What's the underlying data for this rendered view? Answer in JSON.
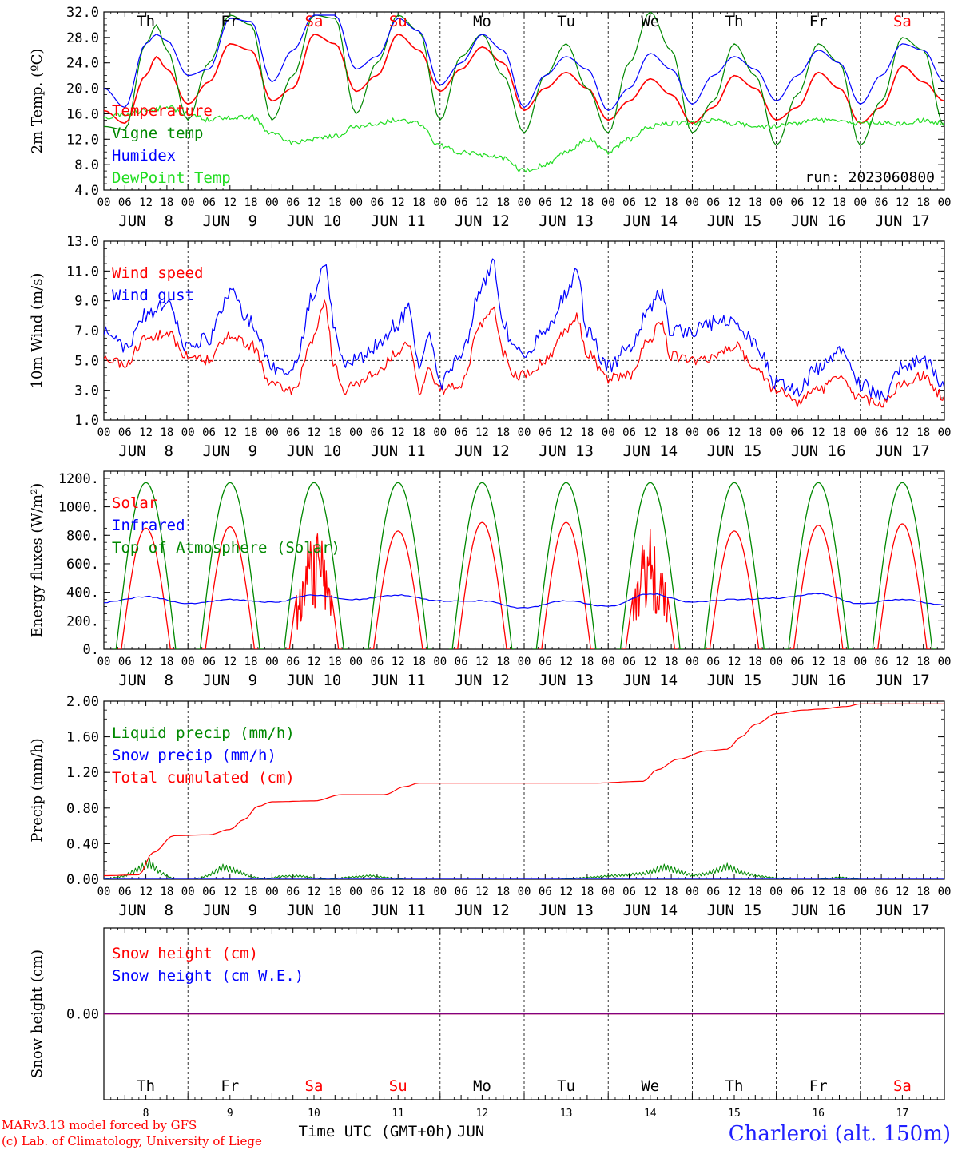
{
  "station_title": "Charleroi (alt. 150m)",
  "footer": {
    "credit_line1": "MARv3.13 model forced by GFS",
    "credit_line2": "(c) Lab. of Climatology, University of Liege",
    "x_axis_title": "Time UTC (GMT+0h)",
    "month": "JUN"
  },
  "days": {
    "weekdays": [
      "Th",
      "Fr",
      "Sa",
      "Su",
      "Mo",
      "Tu",
      "We",
      "Th",
      "Fr",
      "Sa"
    ],
    "weekend_flags": [
      false,
      false,
      true,
      true,
      false,
      false,
      false,
      false,
      false,
      true
    ],
    "dates": [
      "JUN  8",
      "JUN  9",
      "JUN 10",
      "JUN 11",
      "JUN 12",
      "JUN 13",
      "JUN 14",
      "JUN 15",
      "JUN 16",
      "JUN 17"
    ],
    "day_numbers": [
      "8",
      "9",
      "10",
      "11",
      "12",
      "13",
      "14",
      "15",
      "16",
      "17"
    ],
    "hour_ticks": [
      "00",
      "06",
      "12",
      "18"
    ],
    "final_tick": "00"
  },
  "colors": {
    "red": "#ff0000",
    "dark_green": "#008800",
    "blue": "#0000ff",
    "light_green": "#22dd22",
    "purple": "#800080",
    "station_blue": "#2020ff"
  },
  "chart_data": [
    {
      "type": "line",
      "id": "temp",
      "ylabel": "2m Temp. (ºC)",
      "ylim": [
        4,
        32
      ],
      "yticks": [
        "4.0",
        "8.0",
        "12.0",
        "16.0",
        "20.0",
        "24.0",
        "28.0",
        "32.0"
      ],
      "run_label": "run: 2023060800",
      "x_unit": "hours since JUN 8 00 UTC",
      "series": [
        {
          "name": "Temperature",
          "color": "#ff0000",
          "x": [
            0,
            6,
            12,
            15,
            18,
            24,
            30,
            36,
            42,
            48,
            54,
            60,
            66,
            72,
            78,
            84,
            90,
            96,
            102,
            108,
            114,
            120,
            126,
            132,
            138,
            144,
            150,
            156,
            162,
            168,
            174,
            180,
            186,
            192,
            198,
            204,
            210,
            216,
            222,
            228,
            234,
            240
          ],
          "y": [
            16.5,
            14.5,
            22,
            25,
            23,
            17.5,
            21,
            27,
            26,
            18,
            20,
            28.5,
            27,
            19.5,
            22,
            28.5,
            26,
            19.5,
            23,
            26.5,
            24,
            16.5,
            20,
            22.5,
            20,
            15,
            18,
            21.5,
            19,
            14.5,
            17,
            22,
            20,
            15,
            17,
            22.5,
            20,
            14.5,
            17,
            23.5,
            21,
            18
          ]
        },
        {
          "name": "Vigne temp",
          "color": "#008800",
          "x": [
            0,
            6,
            12,
            15,
            18,
            24,
            30,
            36,
            42,
            48,
            54,
            60,
            66,
            72,
            78,
            84,
            90,
            96,
            102,
            108,
            114,
            120,
            126,
            132,
            138,
            144,
            150,
            156,
            162,
            168,
            174,
            180,
            186,
            192,
            198,
            204,
            210,
            216,
            222,
            228,
            234,
            240
          ],
          "y": [
            14,
            13.5,
            27,
            30,
            26,
            15,
            24,
            31.5,
            30,
            15,
            22,
            31.5,
            31,
            16,
            24,
            31.5,
            29,
            15,
            25,
            28.5,
            22,
            13,
            22,
            27,
            20,
            13,
            24,
            32,
            26,
            13,
            18,
            27,
            22,
            11,
            19,
            27,
            24,
            11,
            18,
            28,
            26,
            14
          ]
        },
        {
          "name": "Humidex",
          "color": "#0000ff",
          "x": [
            0,
            6,
            12,
            15,
            18,
            24,
            30,
            36,
            42,
            48,
            54,
            60,
            66,
            72,
            78,
            84,
            90,
            96,
            102,
            108,
            114,
            120,
            126,
            132,
            138,
            144,
            150,
            156,
            162,
            168,
            174,
            180,
            186,
            192,
            198,
            204,
            210,
            216,
            222,
            228,
            234,
            240
          ],
          "y": [
            20,
            17,
            27,
            28.5,
            27.5,
            22,
            23,
            31,
            30.5,
            21,
            26,
            31.5,
            31.5,
            23,
            25,
            31,
            29,
            20.5,
            24,
            28.5,
            26,
            17,
            22,
            25,
            23,
            16.5,
            20,
            25.5,
            23,
            17.5,
            22,
            25,
            23,
            18,
            22,
            26,
            24,
            17.5,
            22,
            27,
            26,
            21
          ]
        },
        {
          "name": "DewPoint Temp",
          "color": "#22dd22",
          "x": [
            0,
            6,
            12,
            18,
            24,
            30,
            36,
            42,
            48,
            54,
            60,
            66,
            72,
            78,
            84,
            90,
            96,
            102,
            108,
            114,
            120,
            126,
            132,
            138,
            144,
            150,
            156,
            162,
            168,
            174,
            180,
            186,
            192,
            198,
            204,
            210,
            216,
            222,
            228,
            234,
            240
          ],
          "y": [
            15.5,
            16,
            16.5,
            17,
            16,
            15,
            15.5,
            15.5,
            13,
            11.5,
            12,
            12.5,
            14,
            14.5,
            15,
            14.5,
            11,
            10,
            9.5,
            9,
            7,
            8,
            10,
            12,
            10,
            12,
            14,
            14.5,
            14.5,
            15,
            14.5,
            14,
            14,
            14.5,
            15,
            15,
            14.5,
            14.5,
            14.5,
            15,
            14.5
          ]
        }
      ]
    },
    {
      "type": "line",
      "id": "wind",
      "ylabel": "10m Wind (m/s)",
      "ylim": [
        1,
        13
      ],
      "yticks": [
        "1.0",
        "3.0",
        "5.0",
        "7.0",
        "9.0",
        "11.0",
        "13.0"
      ],
      "reference_line": 5,
      "series": [
        {
          "name": "Wind speed",
          "color": "#ff0000",
          "x": [
            0,
            6,
            12,
            18,
            24,
            30,
            36,
            42,
            48,
            54,
            60,
            63,
            66,
            69,
            72,
            78,
            84,
            87,
            90,
            93,
            96,
            102,
            108,
            111,
            114,
            117,
            120,
            126,
            132,
            135,
            138,
            144,
            150,
            156,
            159,
            162,
            168,
            174,
            180,
            186,
            192,
            198,
            204,
            210,
            216,
            222,
            228,
            234,
            240
          ],
          "y": [
            5.3,
            4.8,
            6.5,
            6.8,
            5.3,
            5.0,
            6.8,
            6.0,
            3.5,
            3.0,
            6.5,
            8.8,
            4.5,
            3.0,
            3.5,
            4.3,
            5.5,
            6.2,
            3.0,
            4.5,
            3.0,
            3.5,
            7.5,
            8.5,
            5.5,
            4.0,
            4.0,
            5.0,
            7.0,
            8.0,
            5.5,
            3.8,
            4.0,
            6.5,
            7.5,
            5.3,
            5.0,
            5.2,
            6.0,
            4.5,
            3.0,
            2.2,
            3.0,
            4.0,
            2.5,
            2.0,
            3.5,
            4.0,
            2.5
          ]
        },
        {
          "name": "Wind gust",
          "color": "#0000ff",
          "x": [
            0,
            6,
            12,
            18,
            24,
            30,
            36,
            42,
            48,
            54,
            60,
            63,
            66,
            69,
            72,
            78,
            84,
            87,
            90,
            93,
            96,
            102,
            108,
            111,
            114,
            117,
            120,
            126,
            132,
            135,
            138,
            144,
            150,
            156,
            159,
            162,
            168,
            174,
            180,
            186,
            192,
            198,
            204,
            210,
            216,
            222,
            228,
            234,
            240
          ],
          "y": [
            7.0,
            6.0,
            8.0,
            9.0,
            5.8,
            6.5,
            9.5,
            7.5,
            4.5,
            4.5,
            9.5,
            11.8,
            7.0,
            4.8,
            5.0,
            6.0,
            7.5,
            8.5,
            4.5,
            6.5,
            3.5,
            5.5,
            10.0,
            11.5,
            7.5,
            6.0,
            5.5,
            7.0,
            9.5,
            11.0,
            7.0,
            4.5,
            6.0,
            8.5,
            9.5,
            7.0,
            7.0,
            7.5,
            7.8,
            6.0,
            3.5,
            3.0,
            4.5,
            5.5,
            3.5,
            2.5,
            4.5,
            5.0,
            3.5
          ]
        }
      ]
    },
    {
      "type": "line",
      "id": "flux",
      "ylabel": "Energy fluxes (W/m²)",
      "ylim": [
        0,
        1250
      ],
      "yticks": [
        "0.",
        "200.",
        "400.",
        "600.",
        "800.",
        "1000.",
        "1200."
      ],
      "series": [
        {
          "name": "Solar",
          "color": "#ff0000",
          "peaks": [
            850,
            860,
            870,
            830,
            890,
            890,
            840,
            830,
            870,
            880
          ]
        },
        {
          "name": "Infrared",
          "color": "#0000ff",
          "x": [
            0,
            12,
            24,
            36,
            48,
            60,
            72,
            84,
            96,
            108,
            120,
            132,
            144,
            156,
            168,
            180,
            192,
            204,
            216,
            228,
            240
          ],
          "y": [
            330,
            370,
            320,
            350,
            330,
            380,
            350,
            380,
            340,
            340,
            290,
            340,
            300,
            390,
            330,
            350,
            360,
            390,
            320,
            350,
            310
          ]
        },
        {
          "name": "Top of Atmosphere (Solar)",
          "color": "#008800",
          "peaks": [
            1170,
            1170,
            1170,
            1170,
            1170,
            1170,
            1170,
            1170,
            1170,
            1170
          ]
        }
      ]
    },
    {
      "type": "line",
      "id": "precip",
      "ylabel": "Precip (mm/h)",
      "ylim": [
        0,
        2.0
      ],
      "yticks": [
        "0.00",
        "0.40",
        "0.80",
        "1.20",
        "1.60",
        "2.00"
      ],
      "series": [
        {
          "name": "Liquid precip (mm/h)",
          "color": "#008800",
          "x": [
            0,
            6,
            10,
            13,
            16,
            20,
            26,
            30,
            34,
            38,
            42,
            46,
            50,
            56,
            60,
            64,
            70,
            76,
            82,
            86,
            90,
            96,
            110,
            130,
            154,
            160,
            164,
            168,
            172,
            178,
            182,
            186,
            190,
            196,
            204,
            210,
            216,
            240
          ],
          "y": [
            0,
            0.05,
            0.15,
            0.24,
            0.1,
            0,
            0,
            0.06,
            0.17,
            0.12,
            0.04,
            0,
            0.04,
            0.05,
            0.02,
            0,
            0.03,
            0.05,
            0.02,
            0,
            0,
            0,
            0,
            0,
            0.08,
            0.17,
            0.12,
            0.05,
            0.08,
            0.18,
            0.1,
            0.05,
            0.03,
            0,
            0,
            0.03,
            0,
            0
          ]
        },
        {
          "name": "Snow precip (mm/h)",
          "color": "#0000ff",
          "x": [
            0,
            240
          ],
          "y": [
            0,
            0
          ]
        },
        {
          "name": "Total cumulated (cm)",
          "color": "#ff0000",
          "x": [
            0,
            10,
            14,
            20,
            30,
            36,
            40,
            44,
            48,
            60,
            68,
            80,
            86,
            90,
            96,
            120,
            140,
            154,
            158,
            164,
            172,
            178,
            182,
            186,
            192,
            200,
            204,
            212,
            216,
            240
          ],
          "y": [
            0.04,
            0.05,
            0.3,
            0.49,
            0.5,
            0.56,
            0.67,
            0.82,
            0.87,
            0.88,
            0.95,
            0.95,
            1.04,
            1.08,
            1.08,
            1.08,
            1.08,
            1.1,
            1.23,
            1.35,
            1.44,
            1.46,
            1.6,
            1.74,
            1.86,
            1.9,
            1.91,
            1.94,
            1.97,
            1.97
          ]
        }
      ]
    },
    {
      "type": "line",
      "id": "snow",
      "ylabel": "Snow height (cm)",
      "ylim": [
        -1,
        1
      ],
      "yticks": [
        "0.00"
      ],
      "series": [
        {
          "name": "Snow height (cm)",
          "color": "#ff0000",
          "x": [
            0,
            240
          ],
          "y": [
            0,
            0
          ]
        },
        {
          "name": "Snow height (cm W.E.)",
          "color": "#0000ff",
          "x": [
            0,
            240
          ],
          "y": [
            0,
            0
          ]
        }
      ]
    }
  ]
}
